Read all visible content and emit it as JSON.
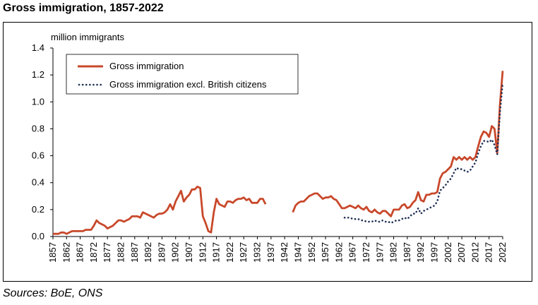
{
  "title": "Gross immigration, 1857-2022",
  "source": "Sources: BoE, ONS",
  "chart_data": {
    "type": "line",
    "title": "Gross immigration, 1857-2022",
    "ylabel": "million immigrants",
    "xlabel": "",
    "xlim": [
      1857,
      2022
    ],
    "ylim": [
      0,
      1.4
    ],
    "yticks": [
      "0.0",
      "0.2",
      "0.4",
      "0.6",
      "0.8",
      "1.0",
      "1.2",
      "1.4"
    ],
    "xticks": [
      "1857",
      "1862",
      "1867",
      "1872",
      "1877",
      "1882",
      "1887",
      "1892",
      "1897",
      "1902",
      "1907",
      "1912",
      "1917",
      "1922",
      "1927",
      "1932",
      "1937",
      "1942",
      "1947",
      "1952",
      "1957",
      "1962",
      "1967",
      "1972",
      "1977",
      "1982",
      "1987",
      "1992",
      "1997",
      "2002",
      "2007",
      "2012",
      "2017",
      "2022"
    ],
    "grid": false,
    "legend_position": "top-left",
    "series": [
      {
        "name": "Gross immigration",
        "color": "#c8482a",
        "style": "solid",
        "points": [
          [
            1857,
            0.02
          ],
          [
            1858,
            0.02
          ],
          [
            1859,
            0.02
          ],
          [
            1860,
            0.03
          ],
          [
            1861,
            0.03
          ],
          [
            1862,
            0.02
          ],
          [
            1863,
            0.03
          ],
          [
            1864,
            0.04
          ],
          [
            1865,
            0.04
          ],
          [
            1866,
            0.04
          ],
          [
            1867,
            0.04
          ],
          [
            1868,
            0.04
          ],
          [
            1869,
            0.05
          ],
          [
            1870,
            0.05
          ],
          [
            1871,
            0.05
          ],
          [
            1872,
            0.08
          ],
          [
            1873,
            0.12
          ],
          [
            1874,
            0.1
          ],
          [
            1875,
            0.09
          ],
          [
            1876,
            0.08
          ],
          [
            1877,
            0.06
          ],
          [
            1878,
            0.07
          ],
          [
            1879,
            0.08
          ],
          [
            1880,
            0.1
          ],
          [
            1881,
            0.12
          ],
          [
            1882,
            0.12
          ],
          [
            1883,
            0.11
          ],
          [
            1884,
            0.12
          ],
          [
            1885,
            0.13
          ],
          [
            1886,
            0.15
          ],
          [
            1887,
            0.15
          ],
          [
            1888,
            0.15
          ],
          [
            1889,
            0.14
          ],
          [
            1890,
            0.18
          ],
          [
            1891,
            0.17
          ],
          [
            1892,
            0.16
          ],
          [
            1893,
            0.15
          ],
          [
            1894,
            0.14
          ],
          [
            1895,
            0.16
          ],
          [
            1896,
            0.17
          ],
          [
            1897,
            0.17
          ],
          [
            1898,
            0.18
          ],
          [
            1899,
            0.2
          ],
          [
            1900,
            0.24
          ],
          [
            1901,
            0.2
          ],
          [
            1902,
            0.26
          ],
          [
            1903,
            0.3
          ],
          [
            1904,
            0.34
          ],
          [
            1905,
            0.26
          ],
          [
            1906,
            0.29
          ],
          [
            1907,
            0.31
          ],
          [
            1908,
            0.35
          ],
          [
            1909,
            0.35
          ],
          [
            1910,
            0.37
          ],
          [
            1911,
            0.36
          ],
          [
            1912,
            0.15
          ],
          [
            1913,
            0.1
          ],
          [
            1914,
            0.04
          ],
          [
            1915,
            0.03
          ],
          [
            1916,
            0.18
          ],
          [
            1917,
            0.28
          ],
          [
            1918,
            0.24
          ],
          [
            1919,
            0.23
          ],
          [
            1920,
            0.22
          ],
          [
            1921,
            0.26
          ],
          [
            1922,
            0.26
          ],
          [
            1923,
            0.25
          ],
          [
            1924,
            0.27
          ],
          [
            1925,
            0.28
          ],
          [
            1926,
            0.28
          ],
          [
            1927,
            0.29
          ],
          [
            1928,
            0.27
          ],
          [
            1929,
            0.28
          ],
          [
            1930,
            0.25
          ],
          [
            1931,
            0.25
          ],
          [
            1932,
            0.25
          ],
          [
            1933,
            0.28
          ],
          [
            1934,
            0.28
          ],
          [
            1935,
            0.24
          ],
          null,
          [
            1945,
            0.18
          ],
          [
            1946,
            0.23
          ],
          [
            1947,
            0.25
          ],
          [
            1948,
            0.26
          ],
          [
            1949,
            0.26
          ],
          [
            1950,
            0.28
          ],
          [
            1951,
            0.3
          ],
          [
            1952,
            0.31
          ],
          [
            1953,
            0.32
          ],
          [
            1954,
            0.32
          ],
          [
            1955,
            0.3
          ],
          [
            1956,
            0.28
          ],
          [
            1957,
            0.29
          ],
          [
            1958,
            0.29
          ],
          [
            1959,
            0.3
          ],
          [
            1960,
            0.28
          ],
          [
            1961,
            0.27
          ],
          [
            1962,
            0.24
          ],
          [
            1963,
            0.21
          ],
          [
            1964,
            0.21
          ],
          [
            1965,
            0.22
          ],
          [
            1966,
            0.23
          ],
          [
            1967,
            0.22
          ],
          [
            1968,
            0.21
          ],
          [
            1969,
            0.23
          ],
          [
            1970,
            0.21
          ],
          [
            1971,
            0.2
          ],
          [
            1972,
            0.22
          ],
          [
            1973,
            0.19
          ],
          [
            1974,
            0.18
          ],
          [
            1975,
            0.2
          ],
          [
            1976,
            0.18
          ],
          [
            1977,
            0.17
          ],
          [
            1978,
            0.19
          ],
          [
            1979,
            0.19
          ],
          [
            1980,
            0.17
          ],
          [
            1981,
            0.15
          ],
          [
            1982,
            0.2
          ],
          [
            1983,
            0.2
          ],
          [
            1984,
            0.2
          ],
          [
            1985,
            0.23
          ],
          [
            1986,
            0.24
          ],
          [
            1987,
            0.21
          ],
          [
            1988,
            0.22
          ],
          [
            1989,
            0.25
          ],
          [
            1990,
            0.27
          ],
          [
            1991,
            0.33
          ],
          [
            1992,
            0.27
          ],
          [
            1993,
            0.26
          ],
          [
            1994,
            0.31
          ],
          [
            1995,
            0.31
          ],
          [
            1996,
            0.32
          ],
          [
            1997,
            0.32
          ],
          [
            1998,
            0.33
          ],
          [
            1999,
            0.43
          ],
          [
            2000,
            0.47
          ],
          [
            2001,
            0.48
          ],
          [
            2002,
            0.5
          ],
          [
            2003,
            0.52
          ],
          [
            2004,
            0.59
          ],
          [
            2005,
            0.57
          ],
          [
            2006,
            0.59
          ],
          [
            2007,
            0.57
          ],
          [
            2008,
            0.59
          ],
          [
            2009,
            0.57
          ],
          [
            2010,
            0.59
          ],
          [
            2011,
            0.57
          ],
          [
            2012,
            0.59
          ],
          [
            2013,
            0.67
          ],
          [
            2014,
            0.74
          ],
          [
            2015,
            0.78
          ],
          [
            2016,
            0.77
          ],
          [
            2017,
            0.74
          ],
          [
            2018,
            0.82
          ],
          [
            2019,
            0.8
          ],
          [
            2020,
            0.62
          ],
          [
            2021,
            0.98
          ],
          [
            2022,
            1.23
          ]
        ]
      },
      {
        "name": "Gross immigration excl. British citizens",
        "color": "#1f2f55",
        "style": "dotted",
        "points": [
          [
            1964,
            0.14
          ],
          [
            1965,
            0.14
          ],
          [
            1966,
            0.14
          ],
          [
            1967,
            0.13
          ],
          [
            1968,
            0.13
          ],
          [
            1969,
            0.13
          ],
          [
            1970,
            0.12
          ],
          [
            1971,
            0.12
          ],
          [
            1972,
            0.11
          ],
          [
            1973,
            0.11
          ],
          [
            1974,
            0.11
          ],
          [
            1975,
            0.12
          ],
          [
            1976,
            0.11
          ],
          [
            1977,
            0.11
          ],
          [
            1978,
            0.12
          ],
          [
            1979,
            0.11
          ],
          [
            1980,
            0.11
          ],
          [
            1981,
            0.1
          ],
          [
            1982,
            0.11
          ],
          [
            1983,
            0.12
          ],
          [
            1984,
            0.12
          ],
          [
            1985,
            0.13
          ],
          [
            1986,
            0.14
          ],
          [
            1987,
            0.13
          ],
          [
            1988,
            0.15
          ],
          [
            1989,
            0.17
          ],
          [
            1990,
            0.17
          ],
          [
            1991,
            0.21
          ],
          [
            1992,
            0.17
          ],
          [
            1993,
            0.19
          ],
          [
            1994,
            0.2
          ],
          [
            1995,
            0.21
          ],
          [
            1996,
            0.22
          ],
          [
            1997,
            0.23
          ],
          [
            1998,
            0.26
          ],
          [
            1999,
            0.34
          ],
          [
            2000,
            0.36
          ],
          [
            2001,
            0.38
          ],
          [
            2002,
            0.41
          ],
          [
            2003,
            0.43
          ],
          [
            2004,
            0.47
          ],
          [
            2005,
            0.51
          ],
          [
            2006,
            0.5
          ],
          [
            2007,
            0.5
          ],
          [
            2008,
            0.49
          ],
          [
            2009,
            0.48
          ],
          [
            2010,
            0.49
          ],
          [
            2011,
            0.52
          ],
          [
            2012,
            0.55
          ],
          [
            2013,
            0.62
          ],
          [
            2014,
            0.67
          ],
          [
            2015,
            0.71
          ],
          [
            2016,
            0.71
          ],
          [
            2017,
            0.7
          ],
          [
            2018,
            0.72
          ],
          [
            2019,
            0.68
          ],
          [
            2020,
            0.61
          ],
          [
            2021,
            0.92
          ],
          [
            2022,
            1.14
          ]
        ]
      }
    ]
  }
}
